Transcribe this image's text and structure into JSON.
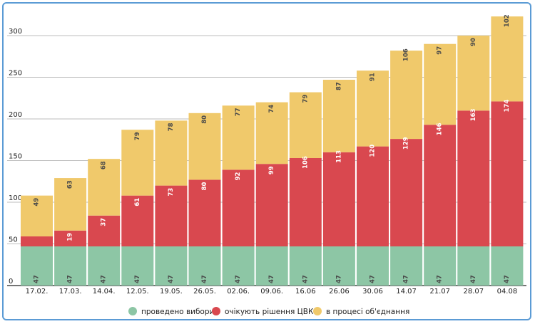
{
  "chart_data": {
    "type": "bar",
    "stacked": true,
    "categories": [
      "17.02.",
      "17.03.",
      "14.04.",
      "12.05.",
      "19.05.",
      "26.05.",
      "02.06.",
      "09.06.",
      "16.06",
      "26.06",
      "30.06",
      "14.07",
      "21.07",
      "28.07",
      "04.08"
    ],
    "series": [
      {
        "name": "проведено вибори",
        "color": "#8dc6a5",
        "label_color": "#4a4a4a",
        "values": [
          47,
          47,
          47,
          47,
          47,
          47,
          47,
          47,
          47,
          47,
          47,
          47,
          47,
          47,
          47
        ]
      },
      {
        "name": "очікують рішення ЦВК",
        "color": "#d9484f",
        "label_color": "#ffffff",
        "values": [
          12,
          19,
          37,
          61,
          73,
          80,
          92,
          99,
          106,
          113,
          120,
          129,
          146,
          163,
          174
        ]
      },
      {
        "name": "в процесі об'єднання",
        "color": "#f0c96b",
        "label_color": "#4a4a4a",
        "values": [
          49,
          63,
          68,
          79,
          78,
          80,
          77,
          74,
          79,
          87,
          91,
          106,
          97,
          90,
          102
        ]
      }
    ],
    "data_labels": [
      [
        "47",
        "47",
        "47",
        "47",
        "47",
        "47",
        "47",
        "47",
        "47",
        "47",
        "47",
        "47",
        "47",
        "47",
        "47"
      ],
      [
        "",
        "19",
        "37",
        "61",
        "73",
        "80",
        "92",
        "99",
        "106",
        "113",
        "120",
        "129",
        "146",
        "163",
        "174"
      ],
      [
        "49",
        "63",
        "68",
        "79",
        "78",
        "80",
        "77",
        "74",
        "79",
        "87",
        "91",
        "106",
        "97",
        "90",
        "102"
      ]
    ],
    "yticks": [
      0,
      50,
      100,
      150,
      200,
      250,
      300
    ],
    "ylim": [
      0,
      340
    ],
    "grid": true,
    "legend_position": "bottom"
  }
}
